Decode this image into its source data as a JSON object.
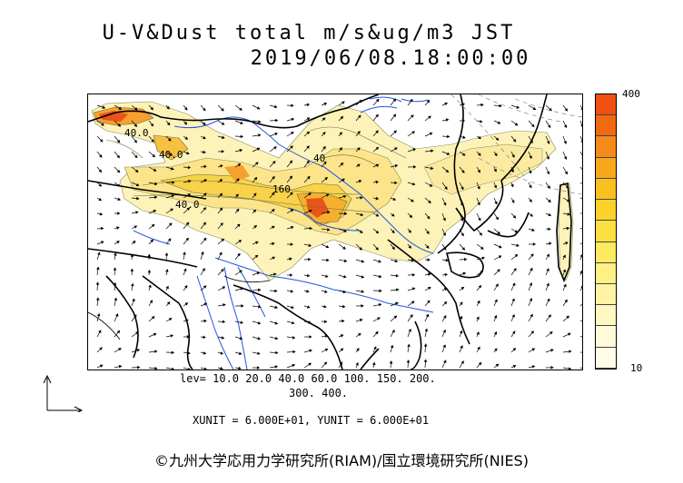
{
  "header": {
    "title_line1": "U-V&Dust total m/s&ug/m3 JST",
    "title_line2": "2019/06/08.18:00:00"
  },
  "colorbar": {
    "top_label": "400",
    "bottom_label": "10",
    "colors": [
      "#f05010",
      "#f06a10",
      "#f58a18",
      "#f8a818",
      "#fac020",
      "#fcd22a",
      "#fde040",
      "#feea60",
      "#fff085",
      "#fff4a5",
      "#fff8c0",
      "#fffbd8",
      "#fffde8"
    ]
  },
  "legend": {
    "levels_line1": "lev= 10.0 20.0 40.0 60.0 100. 150. 200.",
    "levels_line2": "300. 400.",
    "units": "XUNIT = 6.000E+01, YUNIT = 6.000E+01"
  },
  "map": {
    "contour_labels": [
      "40.0",
      "40.0",
      "160",
      "40.0",
      "40"
    ]
  },
  "footer": {
    "credit": "©九州大学応用力学研究所(RIAM)/国立環境研究所(NIES)"
  },
  "colors": {
    "coast": "#000000",
    "rivers": "#2255dd",
    "wind": "#000000",
    "dust_low": "#fdf3b8",
    "dust_mid": "#f7d24a",
    "dust_high": "#e8541a"
  }
}
